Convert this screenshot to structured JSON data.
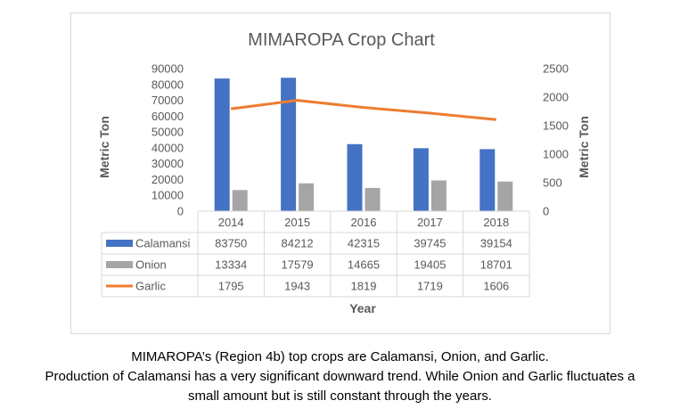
{
  "chart_data": {
    "type": "bar",
    "title": "MIMAROPA Crop Chart",
    "xlabel": "Year",
    "ylabel": "Metric Ton",
    "y2label": "Metric Ton",
    "categories": [
      "2014",
      "2015",
      "2016",
      "2017",
      "2018"
    ],
    "ylim": [
      0,
      90000
    ],
    "yticks": [
      "0",
      "10000",
      "20000",
      "30000",
      "40000",
      "50000",
      "60000",
      "70000",
      "80000",
      "90000"
    ],
    "y2lim": [
      0,
      2500
    ],
    "y2ticks": [
      "0",
      "500",
      "1000",
      "1500",
      "2000",
      "2500"
    ],
    "legend": "data-table",
    "grid": false,
    "series": [
      {
        "name": "Calamansi",
        "type": "bar",
        "axis": "left",
        "color": "#4472c4",
        "values": [
          83750,
          84212,
          42315,
          39745,
          39154
        ],
        "labels": [
          "83750",
          "84212",
          "42315",
          "39745",
          "39154"
        ]
      },
      {
        "name": "Onion",
        "type": "bar",
        "axis": "left",
        "color": "#a5a5a5",
        "values": [
          13334,
          17579,
          14665,
          19405,
          18701
        ],
        "labels": [
          "13334",
          "17579",
          "14665",
          "19405",
          "18701"
        ]
      },
      {
        "name": "Garlic",
        "type": "line",
        "axis": "right",
        "color": "#ed7d31",
        "values": [
          1795,
          1943,
          1819,
          1719,
          1606
        ],
        "labels": [
          "1795",
          "1943",
          "1819",
          "1719",
          "1606"
        ]
      }
    ]
  },
  "caption": {
    "line1": "MIMAROPA’s (Region 4b) top crops are Calamansi, Onion, and Garlic.",
    "line2": "Production of Calamansi has a very significant downward trend. While Onion and Garlic fluctuates a",
    "line3": "small amount but is still constant through the years."
  }
}
